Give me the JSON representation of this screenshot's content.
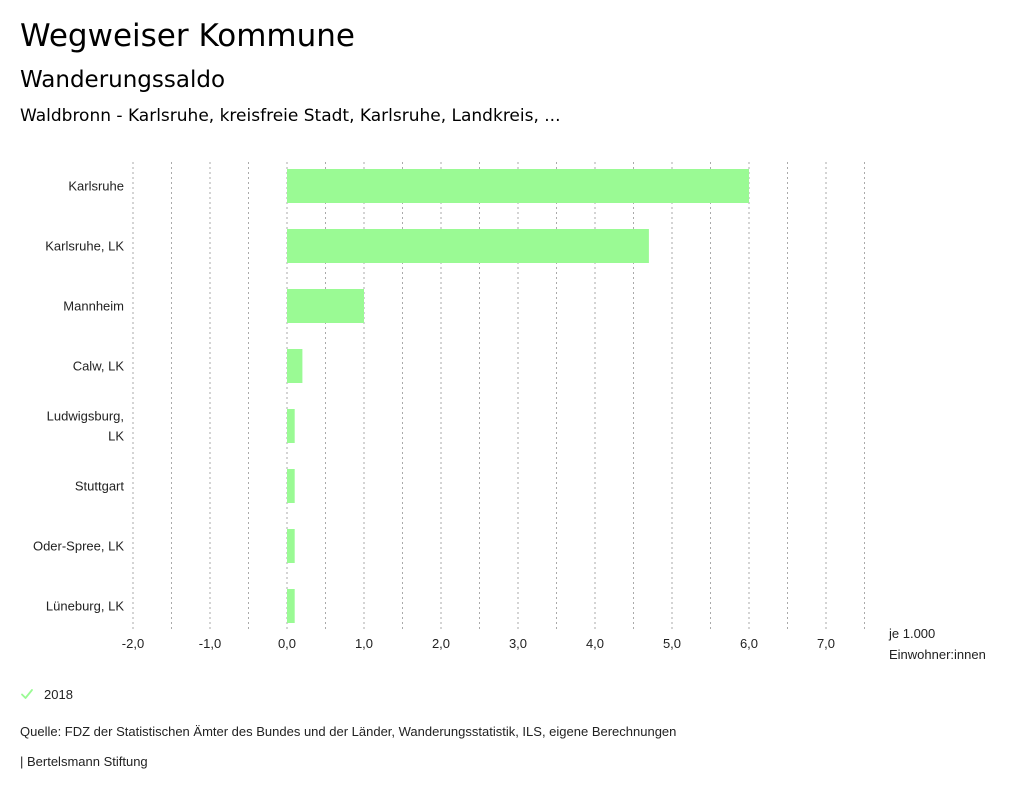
{
  "header": {
    "app_title": "Wegweiser Kommune",
    "indicator": "Wanderungssaldo",
    "region": "Waldbronn - Karlsruhe, kreisfreie Stadt, Karlsruhe, Landkreis, ..."
  },
  "chart_data": {
    "type": "bar",
    "orientation": "horizontal",
    "categories": [
      [
        "Karlsruhe"
      ],
      [
        "Karlsruhe, LK"
      ],
      [
        "Mannheim"
      ],
      [
        "Calw, LK"
      ],
      [
        "Ludwigsburg,",
        "LK"
      ],
      [
        "Stuttgart"
      ],
      [
        "Oder-Spree, LK"
      ],
      [
        "Lüneburg, LK"
      ]
    ],
    "series": [
      {
        "name": "2018",
        "values": [
          6.0,
          4.7,
          1.0,
          0.2,
          0.1,
          0.1,
          0.1,
          0.1
        ]
      }
    ],
    "xlim": [
      -2.0,
      7.5
    ],
    "xticks": [
      -2.0,
      -1.0,
      0.0,
      1.0,
      2.0,
      3.0,
      4.0,
      5.0,
      6.0,
      7.0
    ],
    "xtick_labels": [
      "-2,0",
      "-1,0",
      "0,0",
      "1,0",
      "2,0",
      "3,0",
      "4,0",
      "5,0",
      "6,0",
      "7,0"
    ],
    "xlabel": [
      "je 1.000",
      "Einwohner:innen"
    ],
    "grid": "vertical dotted",
    "bar_color": "#9afa94"
  },
  "legend": {
    "label": "2018",
    "color": "#9afa94",
    "icon": "check-icon"
  },
  "footer": {
    "source": "Quelle: FDZ der Statistischen Ämter des Bundes und der Länder, Wanderungsstatistik, ILS, eigene Berechnungen",
    "publisher": "| Bertelsmann Stiftung"
  }
}
